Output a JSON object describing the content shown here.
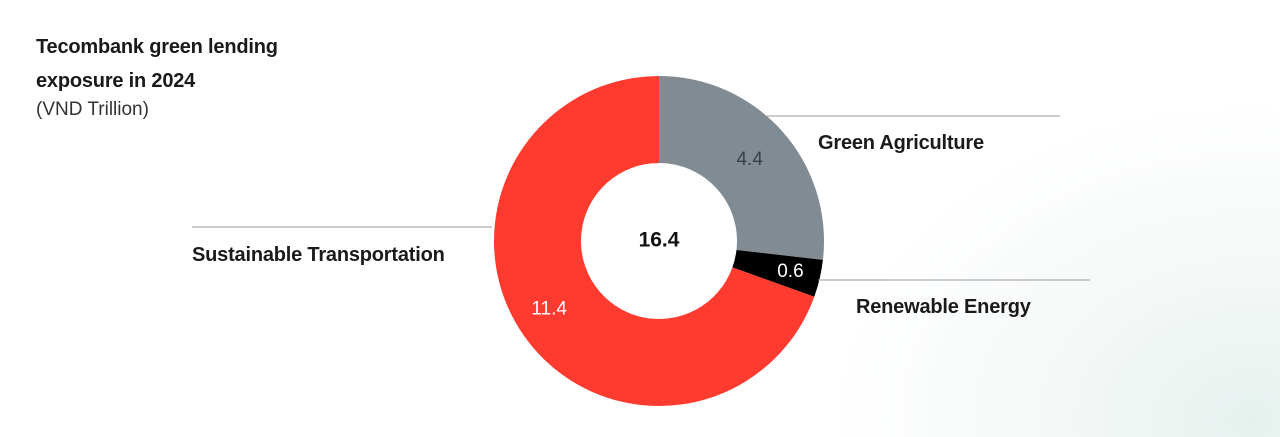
{
  "chart_data": {
    "type": "pie",
    "title": "Tecombank green lending exposure in 2024",
    "subtitle": "(VND Trillion)",
    "total_label": "16.4",
    "categories": [
      "Green Agriculture",
      "Renewable Energy",
      "Sustainable Transportation"
    ],
    "values": [
      4.4,
      0.6,
      11.4
    ],
    "value_labels": [
      "4.4",
      "0.6",
      "11.4"
    ],
    "colors": [
      "#808b93",
      "#000000",
      "#ff3b30"
    ],
    "label_text_colors": [
      "#3a3f44",
      "#ffffff",
      "#ffffff"
    ]
  }
}
